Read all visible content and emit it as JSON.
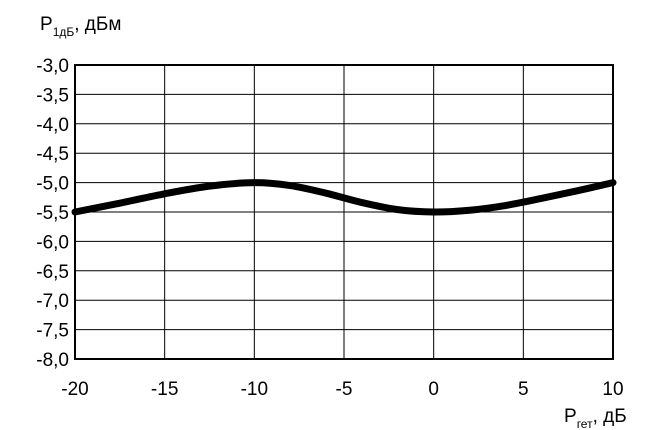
{
  "chart_data": {
    "type": "line",
    "ylabel": {
      "main": "P",
      "sub": "1дБ",
      "suffix": ", дБм"
    },
    "xlabel": {
      "main": "P",
      "sub": "гет",
      "suffix": ", дБ"
    },
    "xlim": [
      -20,
      10
    ],
    "ylim": [
      -8.0,
      -3.0
    ],
    "x_ticks": [
      -20,
      -15,
      -10,
      -5,
      0,
      5,
      10
    ],
    "x_tick_labels": [
      "-20",
      "-15",
      "-10",
      "-5",
      "0",
      "5",
      "10"
    ],
    "y_ticks": [
      -3.0,
      -3.5,
      -4.0,
      -4.5,
      -5.0,
      -5.5,
      -6.0,
      -6.5,
      -7.0,
      -7.5,
      -8.0
    ],
    "y_tick_labels": [
      "-3,0",
      "-3,5",
      "-4,0",
      "-4,5",
      "-5,0",
      "-5,5",
      "-6,0",
      "-6,5",
      "-7,0",
      "-7,5",
      "-8,0"
    ],
    "grid": true,
    "series": [
      {
        "color": "#000000",
        "x": [
          -20,
          -17.5,
          -15,
          -12.5,
          -10,
          -8,
          -6,
          -4,
          -2,
          0,
          2,
          4,
          6,
          8,
          10
        ],
        "y": [
          -5.5,
          -5.35,
          -5.19,
          -5.06,
          -5.0,
          -5.05,
          -5.18,
          -5.34,
          -5.46,
          -5.5,
          -5.47,
          -5.39,
          -5.27,
          -5.14,
          -5.0
        ]
      }
    ]
  }
}
